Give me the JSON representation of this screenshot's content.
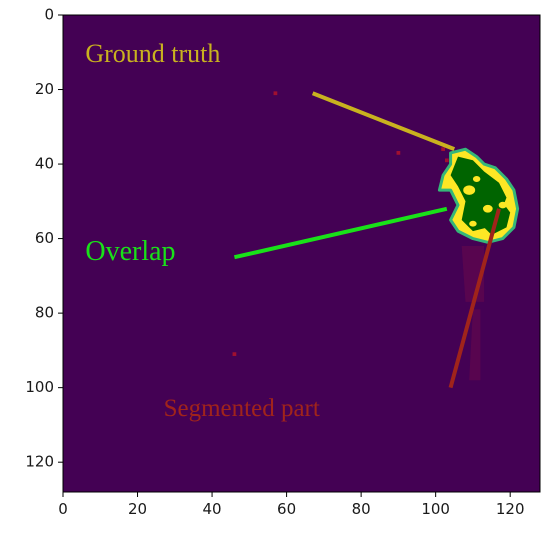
{
  "chart_data": {
    "type": "heatmap",
    "title": "",
    "xlabel": "",
    "ylabel": "",
    "xlim": [
      0,
      128
    ],
    "ylim": [
      128,
      0
    ],
    "x_ticks": [
      0,
      20,
      40,
      60,
      80,
      100,
      120
    ],
    "y_ticks": [
      0,
      20,
      40,
      60,
      80,
      100,
      120
    ],
    "x_tick_labels": [
      "0",
      "20",
      "40",
      "60",
      "80",
      "100",
      "120"
    ],
    "y_tick_labels": [
      "0",
      "20",
      "40",
      "60",
      "80",
      "100",
      "120"
    ],
    "grid": false,
    "colors": {
      "background": "#440154",
      "ground_truth": "#fde725",
      "overlap": "#006400",
      "ground_truth_boundary": "#35b779",
      "segmented_noise": "#a01030"
    },
    "regions": {
      "ground_truth": [
        [
          104,
          37
        ],
        [
          108,
          36
        ],
        [
          111,
          38
        ],
        [
          113,
          40
        ],
        [
          116,
          41
        ],
        [
          119,
          44
        ],
        [
          121,
          47
        ],
        [
          122,
          52
        ],
        [
          121,
          57
        ],
        [
          118,
          60
        ],
        [
          114,
          61
        ],
        [
          110,
          60
        ],
        [
          106,
          58
        ],
        [
          104,
          55
        ],
        [
          106,
          51
        ],
        [
          104,
          47
        ],
        [
          101,
          47
        ],
        [
          102,
          43
        ],
        [
          104,
          40
        ]
      ],
      "overlap_blobs": [
        [
          [
            106,
            38
          ],
          [
            110,
            39
          ],
          [
            113,
            42
          ],
          [
            117,
            45
          ],
          [
            119,
            49
          ],
          [
            117,
            54
          ],
          [
            114,
            57
          ],
          [
            110,
            58
          ],
          [
            107,
            55
          ],
          [
            108,
            50
          ],
          [
            106,
            46
          ],
          [
            104,
            43
          ]
        ],
        [
          [
            112,
            50
          ],
          [
            117,
            49
          ],
          [
            120,
            53
          ],
          [
            119,
            57
          ],
          [
            115,
            59
          ],
          [
            112,
            56
          ]
        ]
      ],
      "yellow_spots": [
        [
          109,
          47,
          1.6
        ],
        [
          114,
          52,
          1.3
        ],
        [
          111,
          44,
          1.0
        ],
        [
          118,
          51,
          1.1
        ],
        [
          110,
          56,
          1.0
        ]
      ],
      "noise_points": [
        [
          90,
          37
        ],
        [
          102,
          36
        ],
        [
          46,
          91
        ],
        [
          57,
          21
        ],
        [
          103,
          39
        ]
      ],
      "segmented_faint": [
        [
          [
            107,
            62
          ],
          [
            113,
            62
          ],
          [
            113,
            77
          ],
          [
            108,
            77
          ]
        ],
        [
          [
            110,
            79
          ],
          [
            112,
            79
          ],
          [
            112,
            98
          ],
          [
            109,
            98
          ]
        ]
      ]
    },
    "annotations": [
      {
        "text": "Ground truth",
        "color": "#c9b21f",
        "text_x": 6,
        "text_y": 11,
        "arrow_from": [
          67,
          21
        ],
        "arrow_to": [
          105,
          36
        ],
        "font_size": 26
      },
      {
        "text": "Overlap",
        "color": "#19e219",
        "text_x": 6,
        "text_y": 64,
        "arrow_from": [
          46,
          65
        ],
        "arrow_to": [
          103,
          52
        ],
        "font_size": 28
      },
      {
        "text": "Segmented part",
        "color": "#a0241b",
        "text_x": 27,
        "text_y": 106,
        "arrow_from": [
          104,
          100
        ],
        "arrow_to": [
          117,
          52
        ],
        "font_size": 25
      }
    ]
  }
}
